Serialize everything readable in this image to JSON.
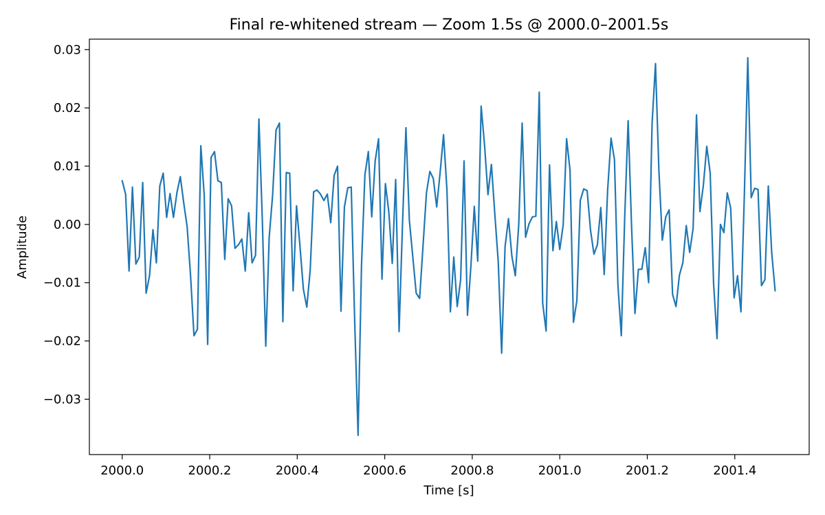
{
  "chart_data": {
    "type": "line",
    "title": "Final re-whitened stream — Zoom 1.5s @ 2000.0–2001.5s",
    "xlabel": "Time [s]",
    "ylabel": "Amplitude",
    "xlim": [
      1999.925,
      2001.57
    ],
    "ylim": [
      -0.0395,
      0.0318
    ],
    "x_ticks": [
      2000.0,
      2000.2,
      2000.4,
      2000.6,
      2000.8,
      2001.0,
      2001.2,
      2001.4
    ],
    "x_tick_labels": [
      "2000.0",
      "2000.2",
      "2000.4",
      "2000.6",
      "2000.8",
      "2001.0",
      "2001.2",
      "2001.4"
    ],
    "y_ticks": [
      -0.03,
      -0.02,
      -0.01,
      0.0,
      0.01,
      0.02,
      0.03
    ],
    "y_tick_labels": [
      "−0.03",
      "−0.02",
      "−0.01",
      "0.00",
      "0.01",
      "0.02",
      "0.03"
    ],
    "grid": false,
    "series": [
      {
        "color": "#1f77b4",
        "x_start": 2000.0,
        "x_step": 0.0078125,
        "values": [
          0.0075,
          0.0052,
          -0.008,
          0.0064,
          -0.0068,
          -0.0056,
          0.0072,
          -0.0118,
          -0.0088,
          -0.0009,
          -0.0066,
          0.0066,
          0.0088,
          0.0012,
          0.0053,
          0.0012,
          0.0054,
          0.0082,
          0.0037,
          -0.0004,
          -0.0088,
          -0.0191,
          -0.018,
          0.0135,
          0.005,
          -0.0206,
          0.0115,
          0.0125,
          0.0075,
          0.0072,
          -0.006,
          0.0044,
          0.0032,
          -0.0041,
          -0.0035,
          -0.0025,
          -0.008,
          0.002,
          -0.0066,
          -0.0053,
          0.0181,
          0.0006,
          -0.0209,
          -0.0022,
          0.005,
          0.0162,
          0.0174,
          -0.0167,
          0.0089,
          0.0088,
          -0.0114,
          0.0032,
          -0.0037,
          -0.0111,
          -0.0142,
          -0.0078,
          0.0056,
          0.0059,
          0.0052,
          0.0041,
          0.0052,
          0.0003,
          0.0084,
          0.01,
          -0.0149,
          0.003,
          0.0063,
          0.0064,
          -0.0164,
          -0.0362,
          -0.0071,
          0.0085,
          0.0125,
          0.0013,
          0.0109,
          0.0147,
          -0.0094,
          0.007,
          0.0021,
          -0.0067,
          0.0077,
          -0.0184,
          0.0001,
          0.0166,
          0.0007,
          -0.0055,
          -0.0118,
          -0.0127,
          -0.0037,
          0.0054,
          0.0091,
          0.0079,
          0.003,
          0.0089,
          0.0154,
          0.0059,
          -0.015,
          -0.0056,
          -0.0141,
          -0.0095,
          0.0109,
          -0.0156,
          -0.0072,
          0.0031,
          -0.0063,
          0.0203,
          0.0136,
          0.0051,
          0.0103,
          0.0018,
          -0.0064,
          -0.0221,
          -0.0038,
          0.001,
          -0.0055,
          -0.0088,
          0.0,
          0.0174,
          -0.0022,
          0.0001,
          0.0013,
          0.0014,
          0.0227,
          -0.0135,
          -0.0183,
          0.0102,
          -0.0045,
          0.0005,
          -0.0043,
          -0.0001,
          0.0147,
          0.0093,
          -0.0168,
          -0.0131,
          0.0041,
          0.0061,
          0.0058,
          -0.001,
          -0.0051,
          -0.0035,
          0.0029,
          -0.0086,
          0.0059,
          0.0148,
          0.0111,
          -0.0103,
          -0.0191,
          0.0013,
          0.0178,
          -0.0003,
          -0.0153,
          -0.0077,
          -0.0077,
          -0.004,
          -0.01,
          0.0173,
          0.0276,
          0.0092,
          -0.0027,
          0.0013,
          0.0025,
          -0.012,
          -0.0141,
          -0.0087,
          -0.0066,
          -0.0002,
          -0.0048,
          -0.0007,
          0.0188,
          0.0022,
          0.0067,
          0.0134,
          0.0088,
          -0.0102,
          -0.0196,
          0.0,
          -0.0014,
          0.0054,
          0.0028,
          -0.0126,
          -0.0088,
          -0.015,
          0.0052,
          0.0286,
          0.0046,
          0.0062,
          0.006,
          -0.0105,
          -0.0095,
          0.0066,
          -0.0049,
          -0.0114
        ]
      }
    ]
  }
}
